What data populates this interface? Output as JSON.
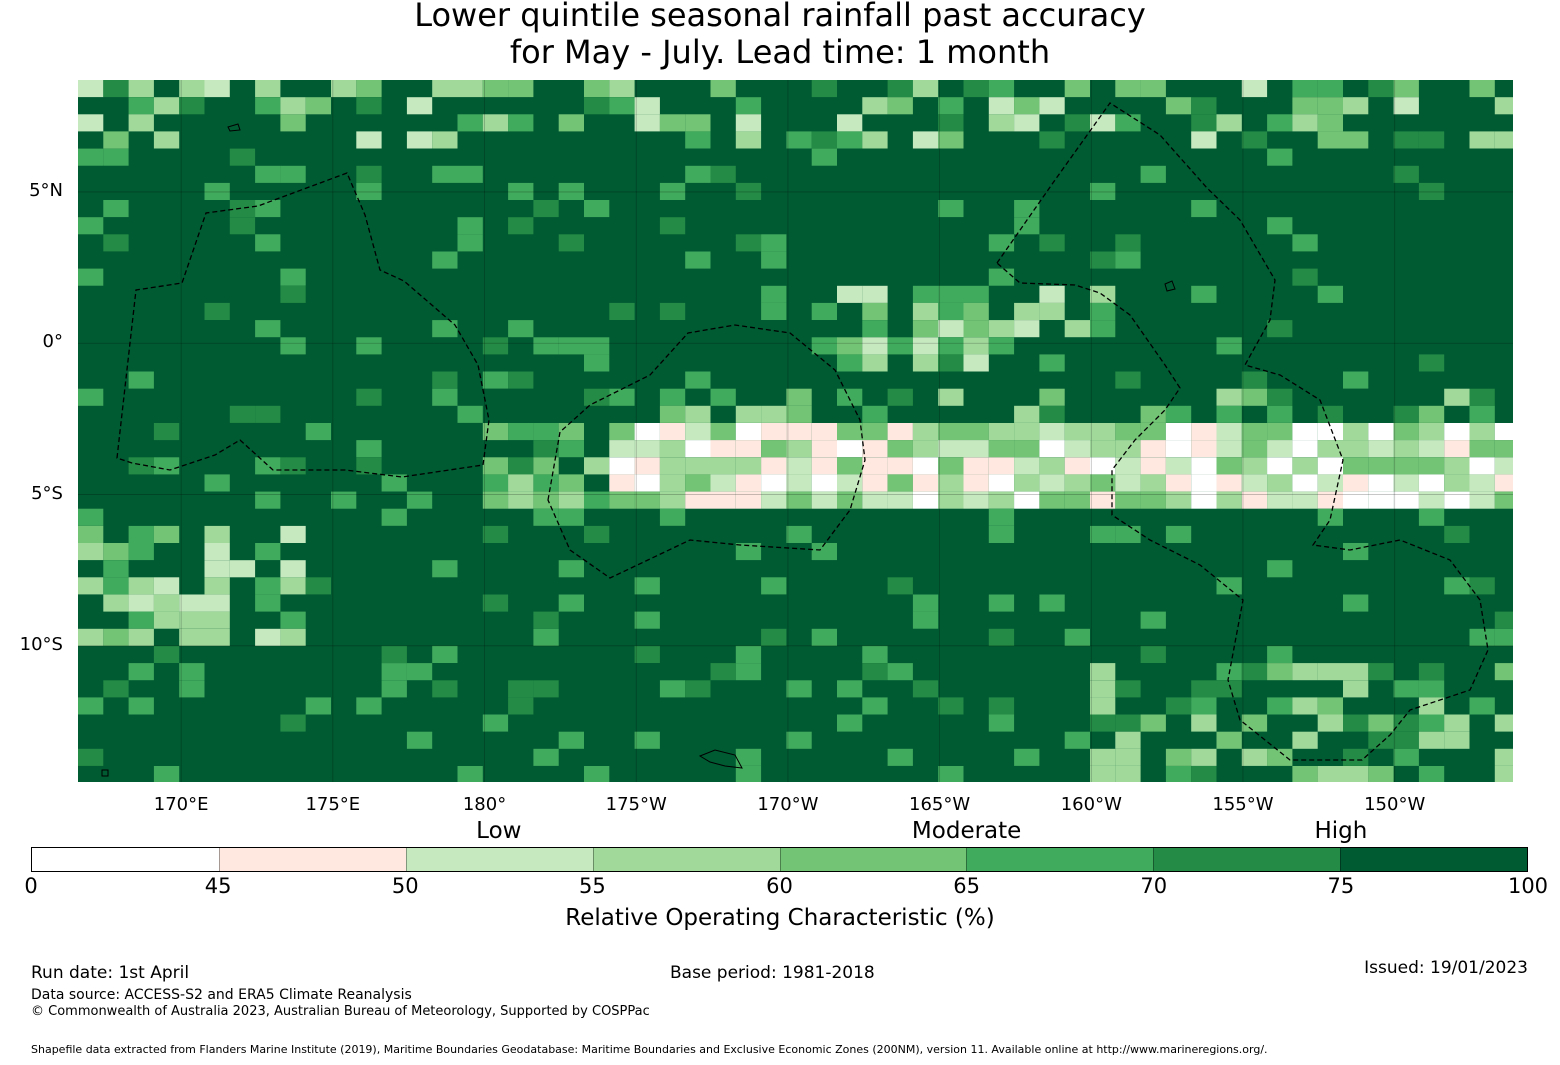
{
  "title": {
    "line1": "Lower quintile seasonal rainfall past accuracy",
    "line2": "for May - July. Lead time: 1 month"
  },
  "map": {
    "lat_labels": [
      "5°N",
      "0°",
      "5°S",
      "10°S"
    ],
    "lat_values": [
      5,
      0,
      -5,
      -10
    ],
    "lon_labels": [
      "170°E",
      "175°E",
      "180°",
      "175°W",
      "170°W",
      "165°W",
      "160°W",
      "155°W",
      "150°W"
    ],
    "lon_values": [
      170,
      175,
      180,
      185,
      190,
      195,
      200,
      205,
      210
    ],
    "lon_range": [
      166.6,
      213.9
    ],
    "lat_range": [
      -14.5,
      8.7
    ],
    "background_color": "#005a32",
    "eez_boundaries": "dashed"
  },
  "colorbar": {
    "categories": [
      {
        "label": "Low",
        "center_value": 52.5
      },
      {
        "label": "Moderate",
        "center_value": 65
      },
      {
        "label": "High",
        "center_value": 75
      }
    ],
    "bins": [
      {
        "from": 0,
        "to": 45,
        "color": "#ffffff"
      },
      {
        "from": 45,
        "to": 50,
        "color": "#fee8df"
      },
      {
        "from": 50,
        "to": 55,
        "color": "#c7e9c0"
      },
      {
        "from": 55,
        "to": 60,
        "color": "#a1d99b"
      },
      {
        "from": 60,
        "to": 65,
        "color": "#74c476"
      },
      {
        "from": 65,
        "to": 70,
        "color": "#41ab5d"
      },
      {
        "from": 70,
        "to": 75,
        "color": "#238b45"
      },
      {
        "from": 75,
        "to": 100,
        "color": "#005a32"
      }
    ],
    "tick_labels": [
      "0",
      "45",
      "50",
      "55",
      "60",
      "65",
      "70",
      "75",
      "100"
    ],
    "title": "Relative Operating Characteristic (%)"
  },
  "footer": {
    "run_date": "Run date: 1st April",
    "base_period": "Base period: 1981-2018",
    "issued": "Issued: 19/01/2023",
    "data_source": "Data source: ACCESS-S2 and ERA5 Climate Reanalysis",
    "copyright": "© Commonwealth of Australia 2023, Australian Bureau of Meteorology, Supported by COSPPac",
    "shapefile": "Shapefile data extracted from Flanders Marine Institute (2019), Maritime Boundaries Geodatabase: Maritime Boundaries and Exclusive Economic Zones (200NM), version 11. Available online at http://www.marineregions.org/."
  }
}
